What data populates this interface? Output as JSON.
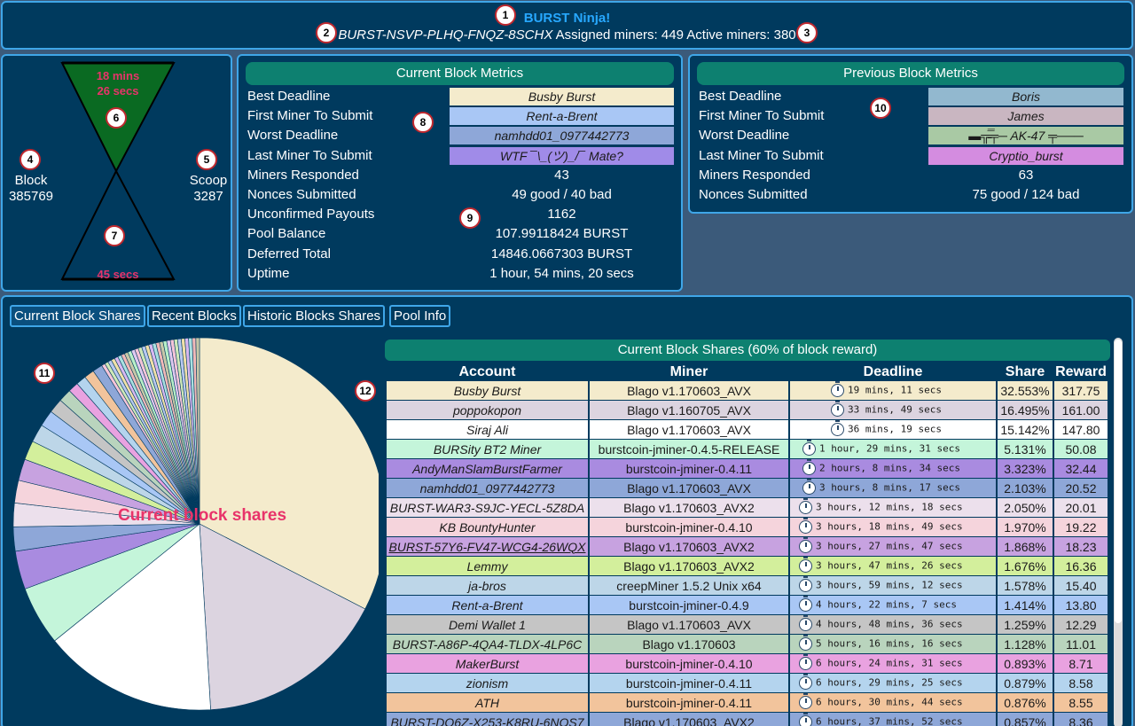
{
  "header": {
    "title": "BURST Ninja!",
    "address": "BURST-NSVP-PLHQ-FNQZ-8SCHX",
    "assigned": "Assigned miners: 449",
    "active": "Active miners: 380"
  },
  "markers": [
    "1",
    "2",
    "3",
    "4",
    "5",
    "6",
    "7",
    "8",
    "9",
    "10",
    "11",
    "12"
  ],
  "hourglass": {
    "top_time_1": "18 mins",
    "top_time_2": "26 secs",
    "bottom_time": "45 secs",
    "block_label": "Block",
    "block_value": "385769",
    "scoop_label": "Scoop",
    "scoop_value": "3287",
    "colors": {
      "sand": "#0a7a28",
      "outline": "#000000",
      "time_text": "#e8336a"
    }
  },
  "current_metrics": {
    "title": "Current Block Metrics",
    "rows": [
      {
        "label": "Best Deadline",
        "value": "Busby Burst",
        "color": "#f4ebcc"
      },
      {
        "label": "First Miner To Submit",
        "value": "Rent-a-Brent",
        "color": "#a9c7f5"
      },
      {
        "label": "Worst Deadline",
        "value": "namhdd01_0977442773",
        "color": "#8ea7d8"
      },
      {
        "label": "Last Miner To Submit",
        "value": "WTF ¯\\_(ツ)_/¯ Mate?",
        "color": "#a08be8"
      },
      {
        "label": "Miners Responded",
        "value": "43"
      },
      {
        "label": "Nonces Submitted",
        "value": "49 good / 40 bad"
      },
      {
        "label": "Unconfirmed Payouts",
        "value": "1162"
      },
      {
        "label": "Pool Balance",
        "value": "107.99118424 BURST"
      },
      {
        "label": "Deferred Total",
        "value": "14846.0667303 BURST"
      },
      {
        "label": "Uptime",
        "value": "1 hour, 54 mins, 20 secs"
      }
    ]
  },
  "previous_metrics": {
    "title": "Previous Block Metrics",
    "rows": [
      {
        "label": "Best Deadline",
        "value": "Boris",
        "color": "#92b8cf"
      },
      {
        "label": "First Miner To Submit",
        "value": "James",
        "color": "#c9b6c1"
      },
      {
        "label": "Worst Deadline",
        "value": "▬╦̵̵̿╤─ AK-47 ╤───",
        "color": "#a9c9a4"
      },
      {
        "label": "Last Miner To Submit",
        "value": "Cryptio_burst",
        "color": "#d48ce0"
      },
      {
        "label": "Miners Responded",
        "value": "63"
      },
      {
        "label": "Nonces Submitted",
        "value": "75 good / 124 bad"
      }
    ]
  },
  "tabs": [
    "Current Block Shares",
    "Recent Blocks",
    "Historic Blocks Shares",
    "Pool Info"
  ],
  "pie_label": "Current block shares",
  "table": {
    "title": "Current Block Shares (60% of block reward)",
    "headers": [
      "Account",
      "Miner",
      "Deadline",
      "Share",
      "Reward"
    ],
    "rows": [
      {
        "account": "Busby Burst",
        "miner": "Blago v1.170603_AVX",
        "deadline": "19 mins, 11 secs",
        "share": "32.553%",
        "reward": "317.75",
        "color": "#f4ebcc",
        "share_value": 32.553
      },
      {
        "account": "poppokopon",
        "miner": "Blago v1.160705_AVX",
        "deadline": "33 mins, 49 secs",
        "share": "16.495%",
        "reward": "161.00",
        "color": "#dcd4e0",
        "share_value": 16.495
      },
      {
        "account": "Siraj Ali",
        "miner": "Blago v1.170603_AVX",
        "deadline": "36 mins, 19 secs",
        "share": "15.142%",
        "reward": "147.80",
        "color": "#ffffff",
        "share_value": 15.142
      },
      {
        "account": "BURSity BT2 Miner",
        "miner": "burstcoin-jminer-0.4.5-RELEASE",
        "deadline": "1 hour, 29 mins, 31 secs",
        "share": "5.131%",
        "reward": "50.08",
        "color": "#c4f5da",
        "share_value": 5.131
      },
      {
        "account": "AndyManSlamBurstFarmer",
        "miner": "burstcoin-jminer-0.4.11",
        "deadline": "2 hours, 8 mins, 34 secs",
        "share": "3.323%",
        "reward": "32.44",
        "color": "#a98be0",
        "share_value": 3.323
      },
      {
        "account": "namhdd01_0977442773",
        "miner": "Blago v1.170603_AVX",
        "deadline": "3 hours, 8 mins, 17 secs",
        "share": "2.103%",
        "reward": "20.52",
        "color": "#8ea7d8",
        "share_value": 2.103
      },
      {
        "account": "BURST-WAR3-S9JC-YECL-5Z8DA",
        "miner": "Blago v1.170603_AVX2",
        "deadline": "3 hours, 12 mins, 18 secs",
        "share": "2.050%",
        "reward": "20.01",
        "color": "#ece0ec",
        "share_value": 2.05
      },
      {
        "account": "KB BountyHunter",
        "miner": "burstcoin-jminer-0.4.10",
        "deadline": "3 hours, 18 mins, 49 secs",
        "share": "1.970%",
        "reward": "19.22",
        "color": "#f5d4dc",
        "share_value": 1.97
      },
      {
        "account": "BURST-57Y6-FV47-WCG4-26WQX",
        "miner": "Blago v1.170603_AVX2",
        "deadline": "3 hours, 27 mins, 47 secs",
        "share": "1.868%",
        "reward": "18.23",
        "color": "#c7a2e0",
        "share_value": 1.868
      },
      {
        "account": "Lemmy",
        "miner": "Blago v1.170603_AVX2",
        "deadline": "3 hours, 47 mins, 26 secs",
        "share": "1.676%",
        "reward": "16.36",
        "color": "#d3ef9c",
        "share_value": 1.676
      },
      {
        "account": "ja-bros",
        "miner": "creepMiner 1.5.2 Unix x64",
        "deadline": "3 hours, 59 mins, 12 secs",
        "share": "1.578%",
        "reward": "15.40",
        "color": "#bdd6e8",
        "share_value": 1.578
      },
      {
        "account": "Rent-a-Brent",
        "miner": "burstcoin-jminer-0.4.9",
        "deadline": "4 hours, 22 mins, 7 secs",
        "share": "1.414%",
        "reward": "13.80",
        "color": "#a9c7f5",
        "share_value": 1.414
      },
      {
        "account": "Demi Wallet 1",
        "miner": "Blago v1.170603_AVX",
        "deadline": "4 hours, 48 mins, 36 secs",
        "share": "1.259%",
        "reward": "12.29",
        "color": "#c5c5c5",
        "share_value": 1.259
      },
      {
        "account": "BURST-A86P-4QA4-TLDX-4LP6C",
        "miner": "Blago v1.170603",
        "deadline": "5 hours, 16 mins, 16 secs",
        "share": "1.128%",
        "reward": "11.01",
        "color": "#b9d4bd",
        "share_value": 1.128
      },
      {
        "account": "MakerBurst",
        "miner": "burstcoin-jminer-0.4.10",
        "deadline": "6 hours, 24 mins, 31 secs",
        "share": "0.893%",
        "reward": "8.71",
        "color": "#e9a2e0",
        "share_value": 0.893
      },
      {
        "account": "zionism",
        "miner": "burstcoin-jminer-0.4.11",
        "deadline": "6 hours, 29 mins, 25 secs",
        "share": "0.879%",
        "reward": "8.58",
        "color": "#b4d4ee",
        "share_value": 0.879
      },
      {
        "account": "ATH",
        "miner": "burstcoin-jminer-0.4.11",
        "deadline": "6 hours, 30 mins, 44 secs",
        "share": "0.876%",
        "reward": "8.55",
        "color": "#f2c49c",
        "share_value": 0.876
      },
      {
        "account": "BURST-DQ6Z-X253-K8RU-6NOS7",
        "miner": "Blago v1.170603_AVX2",
        "deadline": "6 hours, 37 mins, 52 secs",
        "share": "0.857%",
        "reward": "8.36",
        "color": "#8ea7d8",
        "share_value": 0.857
      }
    ]
  },
  "chart_data": {
    "type": "pie",
    "title": "Current block shares",
    "slices": [
      {
        "label": "Busby Burst",
        "value": 32.553,
        "color": "#f4ebcc"
      },
      {
        "label": "poppokopon",
        "value": 16.495,
        "color": "#dcd4e0"
      },
      {
        "label": "Siraj Ali",
        "value": 15.142,
        "color": "#ffffff"
      },
      {
        "label": "BURSity BT2 Miner",
        "value": 5.131,
        "color": "#c4f5da"
      },
      {
        "label": "AndyManSlamBurstFarmer",
        "value": 3.323,
        "color": "#a98be0"
      },
      {
        "label": "namhdd01_0977442773",
        "value": 2.103,
        "color": "#8ea7d8"
      },
      {
        "label": "BURST-WAR3-S9JC-YECL-5Z8DA",
        "value": 2.05,
        "color": "#ece0ec"
      },
      {
        "label": "KB BountyHunter",
        "value": 1.97,
        "color": "#f5d4dc"
      },
      {
        "label": "BURST-57Y6-FV47-WCG4-26WQX",
        "value": 1.868,
        "color": "#c7a2e0"
      },
      {
        "label": "Lemmy",
        "value": 1.676,
        "color": "#d3ef9c"
      },
      {
        "label": "ja-bros",
        "value": 1.578,
        "color": "#bdd6e8"
      },
      {
        "label": "Rent-a-Brent",
        "value": 1.414,
        "color": "#a9c7f5"
      },
      {
        "label": "Demi Wallet 1",
        "value": 1.259,
        "color": "#c5c5c5"
      },
      {
        "label": "BURST-A86P-4QA4-TLDX-4LP6C",
        "value": 1.128,
        "color": "#b9d4bd"
      },
      {
        "label": "MakerBurst",
        "value": 0.893,
        "color": "#e9a2e0"
      },
      {
        "label": "zionism",
        "value": 0.879,
        "color": "#b4d4ee"
      },
      {
        "label": "ATH",
        "value": 0.876,
        "color": "#f2c49c"
      },
      {
        "label": "BURST-DQ6Z-X253-K8RU-6NOS7",
        "value": 0.857,
        "color": "#8ea7d8"
      }
    ]
  }
}
